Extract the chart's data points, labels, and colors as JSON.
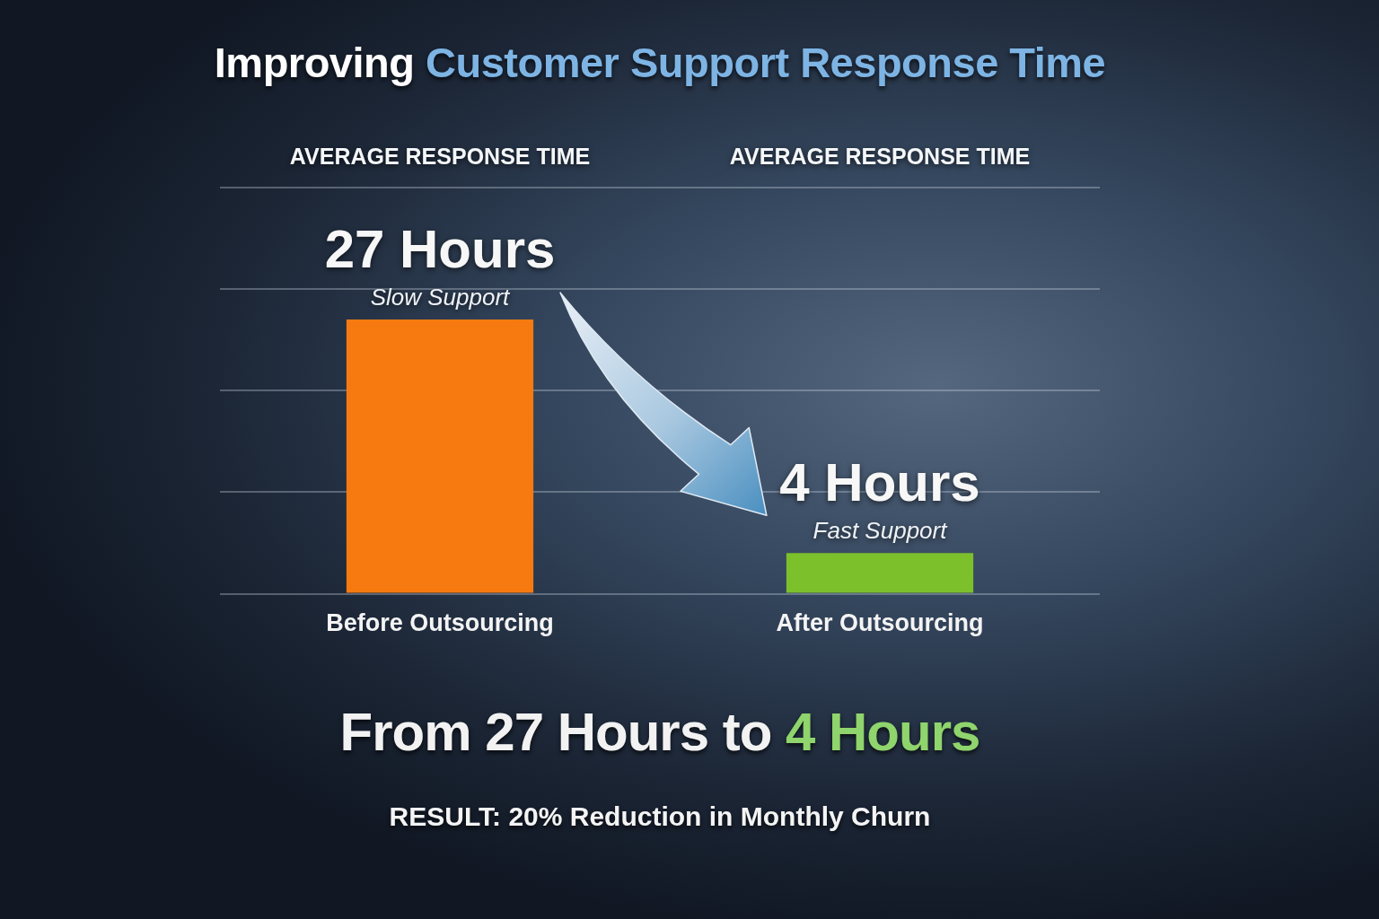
{
  "chart_data": {
    "type": "bar",
    "title": "Improving Customer Support Response Time",
    "categories": [
      "Before Outsourcing",
      "After Outsourcing"
    ],
    "values": [
      27,
      4
    ],
    "colors": [
      "#f77a10",
      "#7cc02c"
    ],
    "value_labels": [
      "27 Hours",
      "4 Hours"
    ],
    "ylim": [
      0,
      40
    ],
    "yticks": [
      {
        "value": 0,
        "label": null
      },
      {
        "value": 10,
        "label": null
      },
      {
        "value": 20,
        "label": null
      },
      {
        "value": 30,
        "label": null
      },
      {
        "value": 40,
        "label": null
      }
    ],
    "annotations": [
      "AVERAGE RESPONSE TIME",
      "AVERAGE RESPONSE TIME",
      {
        "text": "Slow Support",
        "x": "Before Outsourcing",
        "y": 27
      },
      {
        "text": "Fast Support",
        "x": "After Outsourcing",
        "y": 4
      },
      "From 27 Hours to 4 Hours",
      "RESULT: 20% Reduction in Monthly Churn"
    ],
    "grid": "y",
    "tick_labels": "x"
  }
}
